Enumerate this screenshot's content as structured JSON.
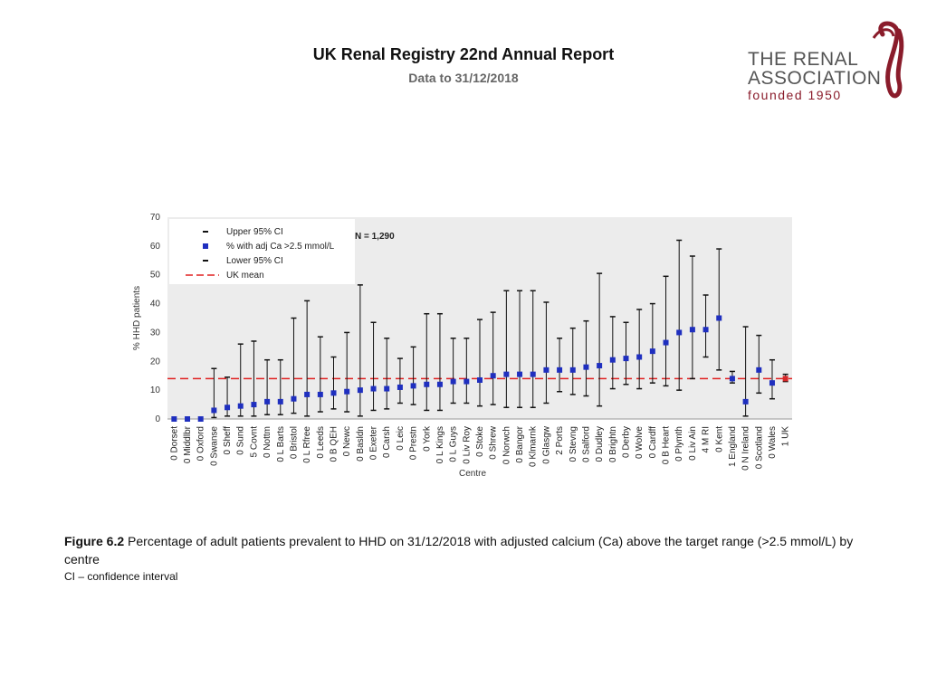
{
  "header": {
    "title": "UK Renal Registry 22nd Annual Report",
    "subtitle": "Data to 31/12/2018"
  },
  "logo": {
    "line1": "THE RENAL",
    "line2": "ASSOCIATION",
    "line3": "founded 1950"
  },
  "caption": {
    "figure_label": "Figure 6.2",
    "text": " Percentage of adult patients prevalent to HHD on 31/12/2018 with adjusted calcium (Ca) above the target range (>2.5 mmol/L) by centre",
    "note": "CI – confidence interval"
  },
  "colors": {
    "point": "#1f2fbf",
    "uk_point": "#d62728",
    "mean_line": "#e02020",
    "error_bar": "#111111",
    "plot_bg": "#ececec"
  },
  "chart_data": {
    "type": "scatter",
    "title": "",
    "xlabel": "Centre",
    "ylabel": "% HHD patients",
    "ylim": [
      0,
      70
    ],
    "yticks": [
      0,
      10,
      20,
      30,
      40,
      50,
      60,
      70
    ],
    "n_label": "N = 1,290",
    "uk_mean": 14,
    "legend": {
      "upper": "Upper 95% CI",
      "point": "% with adj Ca >2.5 mmol/L",
      "lower": "Lower 95% CI",
      "mean": "UK mean"
    },
    "categories": [
      "0 Dorset",
      "0 Middlbr",
      "0 Oxford",
      "0 Swanse",
      "0 Sheff",
      "0 Sund",
      "5 Covnt",
      "0 Nottm",
      "0 L Barts",
      "0 Bristol",
      "0 L Rfree",
      "0 Leeds",
      "0 B QEH",
      "0 Newc",
      "0 Basldn",
      "0 Exeter",
      "0 Carsh",
      "0 Leic",
      "0 Prestn",
      "0 York",
      "0 L Kings",
      "0 L Guys",
      "0 Liv Roy",
      "0 Stoke",
      "0 Shrew",
      "0 Norwch",
      "0 Bangor",
      "0 Klmarnk",
      "0 Glasgw",
      "2 Ports",
      "0 Stevng",
      "0 Salford",
      "0 Dudley",
      "0 Brightn",
      "0 Derby",
      "0 Wolve",
      "0 Cardff",
      "0 B Heart",
      "0 Plymth",
      "0 Liv Ain",
      "4 M RI",
      "0 Kent",
      "1 England",
      "0 N Ireland",
      "0 Scotland",
      "0 Wales",
      "1 UK"
    ],
    "values": [
      0,
      0,
      0,
      3,
      4,
      4.5,
      5,
      6,
      6,
      7,
      8.5,
      8.5,
      9,
      9.5,
      10,
      10.5,
      10.5,
      11,
      11.5,
      12,
      12,
      13,
      13,
      13.5,
      15,
      15.5,
      15.5,
      15.5,
      17,
      17,
      17,
      18,
      18.5,
      20.5,
      21,
      21.5,
      23.5,
      26.5,
      30,
      31,
      31,
      35,
      14,
      6,
      17,
      12.5,
      14
    ],
    "upper": [
      0,
      0,
      0,
      17.5,
      14.5,
      26,
      27,
      20.5,
      20.5,
      35,
      41,
      28.5,
      21.5,
      30,
      46.5,
      33.5,
      28,
      21,
      25,
      36.5,
      36.5,
      28,
      28,
      34.5,
      37,
      44.5,
      44.5,
      44.5,
      40.5,
      28,
      31.5,
      34,
      50.5,
      35.5,
      33.5,
      38,
      40,
      49.5,
      62,
      56.5,
      43,
      59,
      16.5,
      32,
      29,
      20.5,
      15.5
    ],
    "lower": [
      0,
      0,
      0,
      0.5,
      1,
      1,
      1,
      1.5,
      1.5,
      2,
      1,
      2.5,
      3.5,
      2.5,
      1,
      3,
      3.5,
      5.5,
      5,
      3,
      3,
      5.5,
      5.5,
      4.5,
      5,
      4,
      4,
      4,
      5.5,
      9.5,
      8.5,
      8,
      4.5,
      10.5,
      12,
      10.5,
      12.5,
      11.5,
      10,
      14,
      21.5,
      17,
      12.5,
      1,
      9,
      7,
      13
    ]
  }
}
